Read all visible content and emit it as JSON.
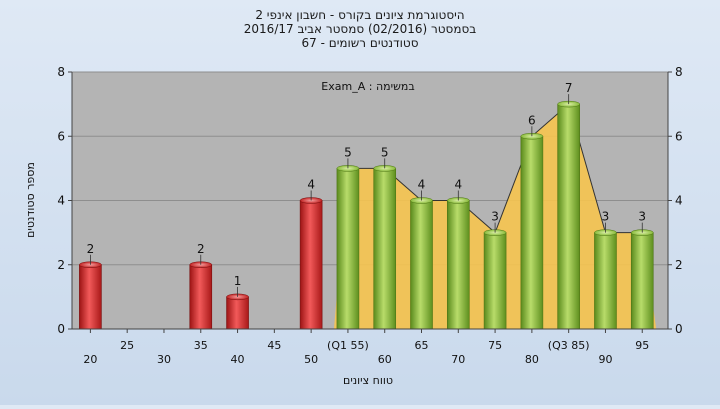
{
  "chart_data": {
    "type": "bar",
    "title_lines": [
      "היסטוגרמת ציונים בקורס - חשבון אינפי 2",
      "בסמסטר  (02/2016)  סמסטר אביב 2016/17",
      "סטודנטים רשומים - 67"
    ],
    "annotation": "במשימה : Exam_A",
    "xlabel": "טווח ציונים",
    "ylabel": "מספר סטודנטים",
    "ylim": [
      0,
      8
    ],
    "yticks": [
      0,
      2,
      4,
      6,
      8
    ],
    "grid": true,
    "x_tick_labels": [
      {
        "x": 20,
        "label": "20"
      },
      {
        "x": 25,
        "label": "25"
      },
      {
        "x": 30,
        "label": "30"
      },
      {
        "x": 35,
        "label": "35"
      },
      {
        "x": 40,
        "label": "40"
      },
      {
        "x": 45,
        "label": "45"
      },
      {
        "x": 50,
        "label": "50"
      },
      {
        "x": 55,
        "label": "(Q1 55)"
      },
      {
        "x": 60,
        "label": "60"
      },
      {
        "x": 65,
        "label": "65"
      },
      {
        "x": 70,
        "label": "70"
      },
      {
        "x": 75,
        "label": "75"
      },
      {
        "x": 80,
        "label": "80"
      },
      {
        "x": 85,
        "label": "(Q3 85)"
      },
      {
        "x": 90,
        "label": "90"
      },
      {
        "x": 95,
        "label": "95"
      }
    ],
    "bars": [
      {
        "x": 20,
        "value": 2,
        "color": "red"
      },
      {
        "x": 35,
        "value": 2,
        "color": "red"
      },
      {
        "x": 40,
        "value": 1,
        "color": "red"
      },
      {
        "x": 50,
        "value": 4,
        "color": "red"
      },
      {
        "x": 55,
        "value": 5,
        "color": "green"
      },
      {
        "x": 60,
        "value": 5,
        "color": "green"
      },
      {
        "x": 65,
        "value": 4,
        "color": "green"
      },
      {
        "x": 70,
        "value": 4,
        "color": "green"
      },
      {
        "x": 75,
        "value": 3,
        "color": "green"
      },
      {
        "x": 80,
        "value": 6,
        "color": "green"
      },
      {
        "x": 85,
        "value": 7,
        "color": "green"
      },
      {
        "x": 90,
        "value": 3,
        "color": "green"
      },
      {
        "x": 95,
        "value": 3,
        "color": "green"
      }
    ],
    "colors": {
      "plot_bg": "#b4b4b4",
      "band": "#f6c44f",
      "red_bar": "#e02b2b",
      "green_bar": "#8cbf3a"
    }
  }
}
